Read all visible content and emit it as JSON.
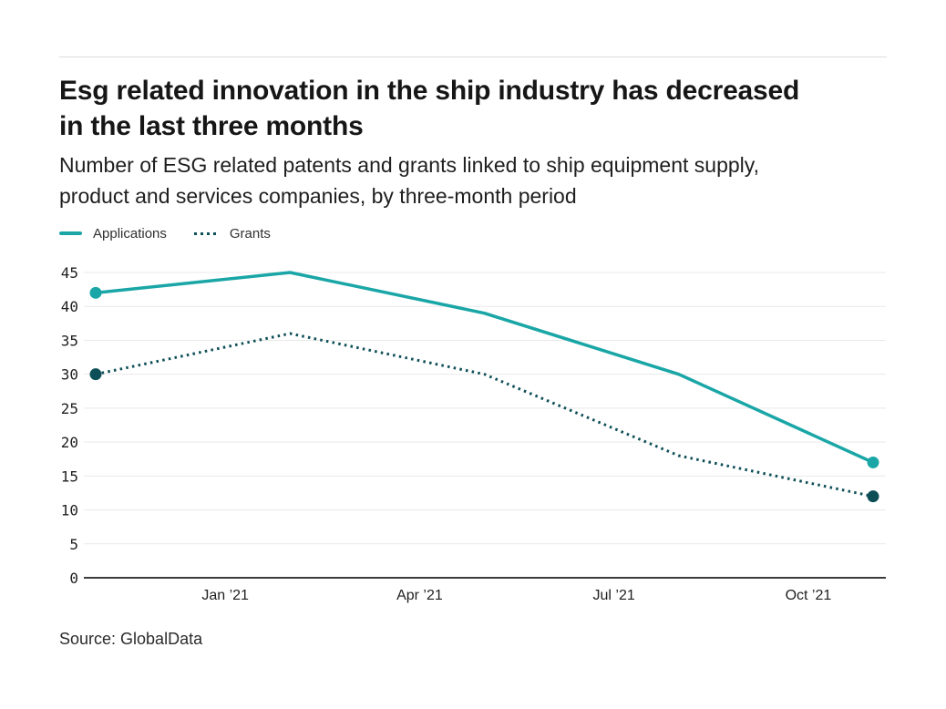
{
  "header": {
    "title_lines": [
      "Esg related innovation in the ship industry has decreased",
      "in the last three months"
    ],
    "subtitle_lines": [
      "Number of ESG related patents and grants linked to ship equipment supply,",
      "product and services companies, by three-month period"
    ]
  },
  "footer": {
    "source": "Source: GlobalData"
  },
  "theme": {
    "applications_color": "#1aa6a6",
    "grants_color": "#0e4f57",
    "grid_color": "#e9e9e9",
    "axis_color": "#3d3d3d",
    "divider_color": "#dcdcdc",
    "text_color": "#1f1f1f"
  },
  "chart_data": {
    "type": "line",
    "title": "Esg related innovation in the ship industry has decreased in the last three months",
    "subtitle": "Number of ESG related patents and grants linked to ship equipment supply, product and services companies, by three-month period",
    "xlabel": "",
    "ylabel": "",
    "ylim": [
      0,
      45
    ],
    "y_tick_step": 5,
    "y_tick_labels": [
      "0",
      "5",
      "10",
      "15",
      "20",
      "25",
      "30",
      "35",
      "40",
      "45"
    ],
    "grid": "horizontal",
    "legend_position": "top-left",
    "x_axis": {
      "domain_months": [
        0,
        12
      ],
      "ticks": [
        "Jan ’21",
        "Apr ’21",
        "Jul ’21",
        "Oct ’21"
      ],
      "tick_months": [
        2,
        5,
        8,
        11
      ]
    },
    "point_month_positions": [
      0,
      3,
      6,
      9,
      12
    ],
    "series": [
      {
        "name": "Applications",
        "line_style": "solid",
        "color": "#1aa6a6",
        "values": [
          42,
          45,
          39,
          30,
          17
        ],
        "end_markers": true
      },
      {
        "name": "Grants",
        "line_style": "dotted",
        "color": "#0e4f57",
        "values": [
          30,
          36,
          30,
          18,
          12
        ],
        "end_markers": true
      }
    ]
  }
}
